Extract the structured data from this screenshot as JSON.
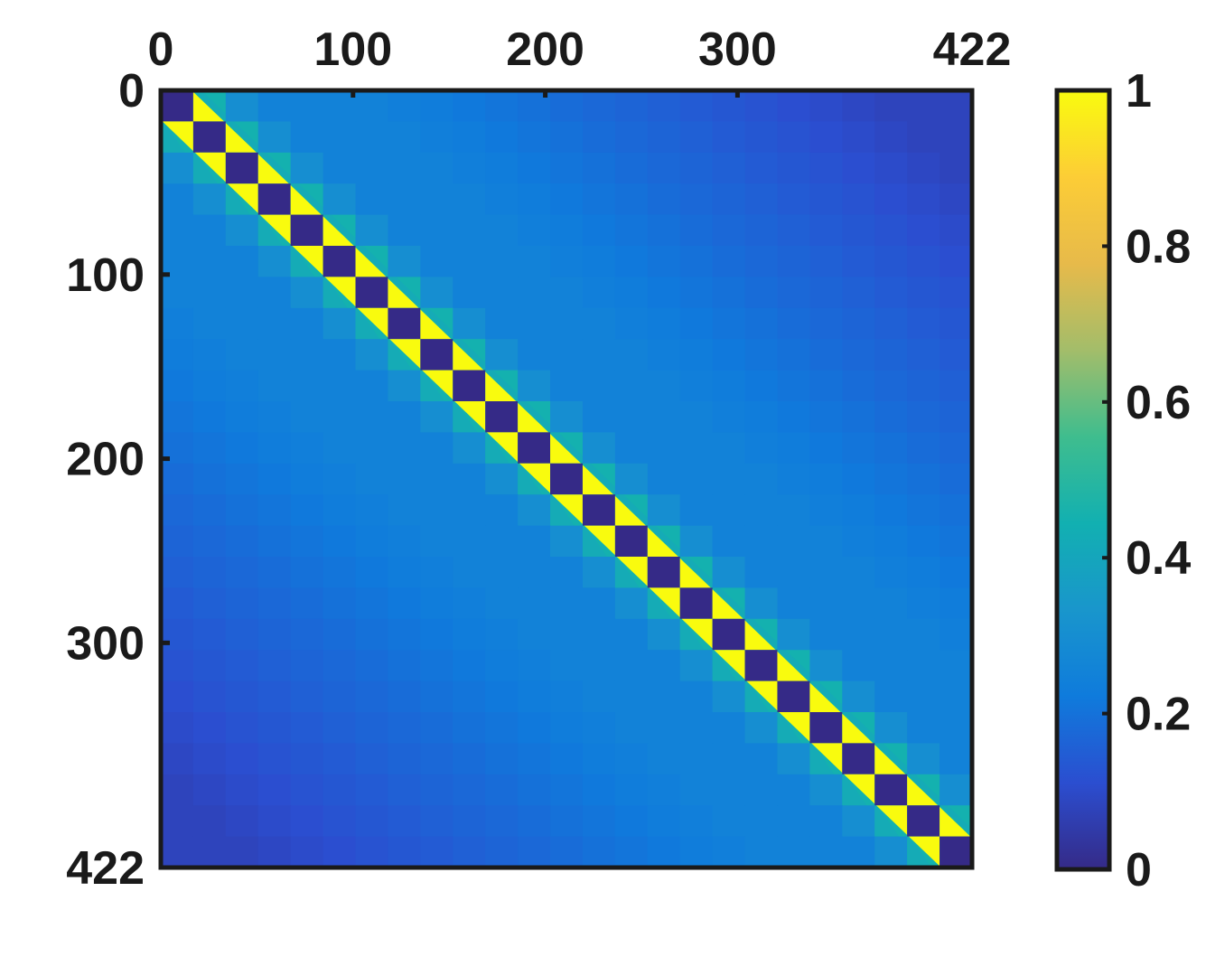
{
  "chart_data": {
    "type": "heatmap",
    "title": "",
    "xlabel": "",
    "ylabel": "",
    "matrix_size": 422,
    "block_count": 25,
    "x_ticks": [
      0,
      100,
      200,
      300,
      422
    ],
    "y_ticks": [
      0,
      100,
      200,
      300,
      422
    ],
    "x_tick_labels": [
      "0",
      "100",
      "200",
      "300",
      "422"
    ],
    "y_tick_labels": [
      "0",
      "100",
      "200",
      "300",
      "422"
    ],
    "x_axis_position": "top",
    "y_axis_direction": "top-to-bottom",
    "colorbar": {
      "range": [
        0,
        1
      ],
      "ticks": [
        0,
        0.2,
        0.4,
        0.6,
        0.8,
        1
      ],
      "tick_labels": [
        "0",
        "0.2",
        "0.4",
        "0.6",
        "0.8",
        "1"
      ],
      "colormap": "parula",
      "colormap_stops": [
        "#352a87",
        "#2b4ed0",
        "#0f7bdc",
        "#1996cc",
        "#12b0b1",
        "#3fbd8e",
        "#a3bd6a",
        "#e7ba4a",
        "#fccd36",
        "#f9fb0e"
      ]
    },
    "pattern": {
      "diagonal_blocks_value": 0.0,
      "first_offdiagonal_peak": 1.0,
      "first_offdiagonal_mid": 0.45,
      "second_offdiagonal": 0.3,
      "background_near": 0.25,
      "background_far": 0.08
    }
  }
}
